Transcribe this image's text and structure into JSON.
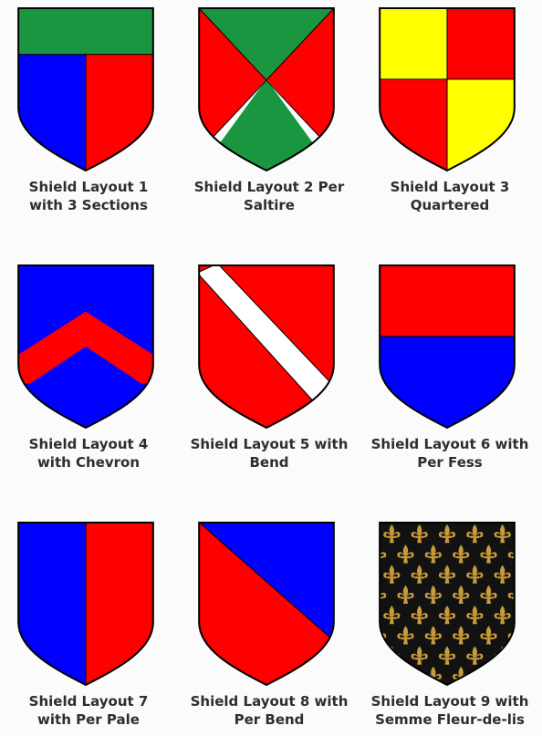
{
  "colors": {
    "green": "#1a9641",
    "red": "#ff0000",
    "blue": "#0000ff",
    "yellow": "#ffff00",
    "white": "#ffffff",
    "black": "#121212",
    "gold": "#c89a3a",
    "outline": "#000000"
  },
  "shields": [
    {
      "line1": "Shield Layout 1",
      "line2": "with 3 Sections",
      "icon": "shield-3-sections-icon"
    },
    {
      "line1": "Shield Layout 2 Per",
      "line2": "Saltire",
      "icon": "shield-per-saltire-icon"
    },
    {
      "line1": "Shield Layout 3",
      "line2": "Quartered",
      "icon": "shield-quartered-icon"
    },
    {
      "line1": "Shield Layout 4",
      "line2": "with Chevron",
      "icon": "shield-chevron-icon"
    },
    {
      "line1": "Shield Layout 5 with",
      "line2": "Bend",
      "icon": "shield-bend-icon"
    },
    {
      "line1": "Shield Layout 6 with",
      "line2": "Per Fess",
      "icon": "shield-per-fess-icon"
    },
    {
      "line1": "Shield Layout 7",
      "line2": "with Per Pale",
      "icon": "shield-per-pale-icon"
    },
    {
      "line1": "Shield Layout 8 with",
      "line2": "Per Bend",
      "icon": "shield-per-bend-icon"
    },
    {
      "line1": "Shield Layout 9 with",
      "line2": "Semme Fleur-de-lis",
      "icon": "shield-semme-fleur-de-lis-icon"
    }
  ]
}
